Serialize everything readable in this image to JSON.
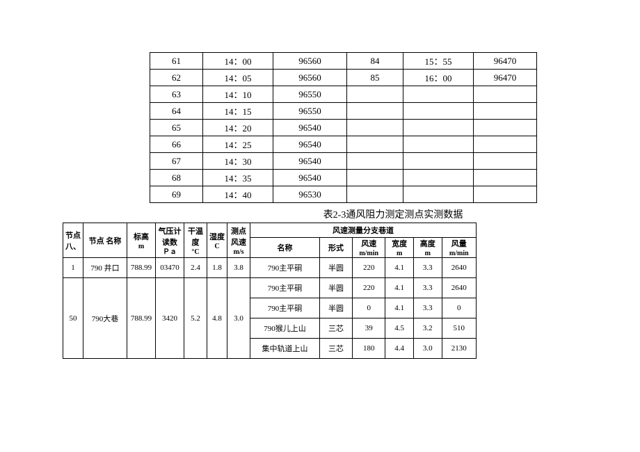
{
  "table1": {
    "rows": [
      {
        "a": "61",
        "b": "14：00",
        "c": "96560",
        "d": "84",
        "e": "15：55",
        "f": "96470"
      },
      {
        "a": "62",
        "b": "14：05",
        "c": "96560",
        "d": "85",
        "e": "16：00",
        "f": "96470"
      },
      {
        "a": "63",
        "b": "14：10",
        "c": "96550",
        "d": "",
        "e": "",
        "f": ""
      },
      {
        "a": "64",
        "b": "14：15",
        "c": "96550",
        "d": "",
        "e": "",
        "f": ""
      },
      {
        "a": "65",
        "b": "14：20",
        "c": "96540",
        "d": "",
        "e": "",
        "f": ""
      },
      {
        "a": "66",
        "b": "14：25",
        "c": "96540",
        "d": "",
        "e": "",
        "f": ""
      },
      {
        "a": "67",
        "b": "14：30",
        "c": "96540",
        "d": "",
        "e": "",
        "f": ""
      },
      {
        "a": "68",
        "b": "14：35",
        "c": "96540",
        "d": "",
        "e": "",
        "f": ""
      },
      {
        "a": "69",
        "b": "14：40",
        "c": "96530",
        "d": "",
        "e": "",
        "f": ""
      }
    ]
  },
  "caption": "表2-3通风阻力测定测点实测数据",
  "table2": {
    "header": {
      "node": "节点八、",
      "nodeName": "节点 名称",
      "elev": "标高",
      "elev_unit": "m",
      "press": "气压计读数",
      "press_unit": "Ｐａ",
      "dry": "干温度",
      "dry_unit": "°C",
      "wet": "湿度",
      "wet_unit": "C",
      "spd": "测点风速",
      "spd_unit": "m/s",
      "branch": "风速测量分支巷道",
      "sub_name": "名称",
      "sub_form": "形式",
      "sub_v": "风速",
      "sub_v_unit": "m/min",
      "sub_w": "宽度",
      "sub_w_unit": "m",
      "sub_h": "高度",
      "sub_h_unit": "m",
      "sub_q": "风量",
      "sub_q_unit": "m/min"
    },
    "rows": [
      {
        "node": "1",
        "name": "790 井口",
        "elev": "788.99",
        "press": "03470",
        "dry": "2.4",
        "wet": "1.8",
        "spd": "3.8",
        "sub": [
          {
            "n": "790主平硐",
            "f": "半圆",
            "v": "220",
            "w": "4.1",
            "h": "3.3",
            "q": "2640"
          }
        ]
      },
      {
        "node": "50",
        "name": "790大巷",
        "elev": "788.99",
        "press": "3420",
        "dry": "5.2",
        "wet": "4.8",
        "spd": "3.0",
        "sub": [
          {
            "n": "790主平硐",
            "f": "半圆",
            "v": "220",
            "w": "4.1",
            "h": "3.3",
            "q": "2640"
          },
          {
            "n": "790主平硐",
            "f": "半圆",
            "v": "0",
            "w": "4.1",
            "h": "3.3",
            "q": "0"
          },
          {
            "n": "790猴儿上山",
            "f": "三芯",
            "v": "39",
            "w": "4.5",
            "h": "3.2",
            "q": "510"
          },
          {
            "n": "集中轨道上山",
            "f": "三芯",
            "v": "180",
            "w": "4.4",
            "h": "3.0",
            "q": "2130"
          }
        ]
      }
    ]
  }
}
